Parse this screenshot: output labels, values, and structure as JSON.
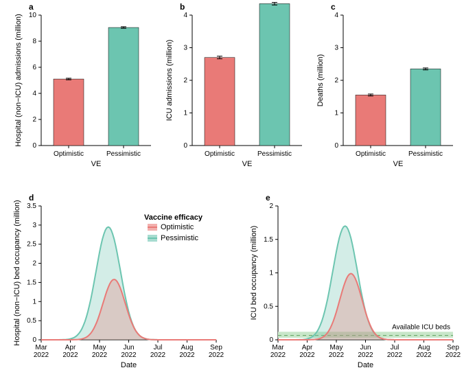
{
  "colors": {
    "optimistic": "#e97a77",
    "pessimistic": "#6cc5b0",
    "axis": "#000000",
    "icuband": "#c8e6c9",
    "icudash": "#5a9e5a"
  },
  "panels": {
    "a": {
      "letter": "a",
      "ylabel": "Hospital (non−ICU) admissions (million)",
      "ymax": 10,
      "ystep": 2,
      "cats": [
        "Optimistic",
        "Pessimistic"
      ],
      "vals": [
        5.1,
        9.05
      ],
      "err": [
        0.06,
        0.06
      ]
    },
    "b": {
      "letter": "b",
      "ylabel": "ICU admissions (million)",
      "ymax": 4,
      "ystep": 1,
      "cats": [
        "Optimistic",
        "Pessimistic"
      ],
      "vals": [
        2.7,
        4.35
      ],
      "err": [
        0.04,
        0.04
      ],
      "ytickshalf": true
    },
    "c": {
      "letter": "c",
      "ylabel": "Deaths (million)",
      "ymax": 4,
      "ystep": 1,
      "cats": [
        "Optimistic",
        "Pessimistic"
      ],
      "vals": [
        1.55,
        2.35
      ],
      "err": [
        0.03,
        0.03
      ]
    },
    "d": {
      "letter": "d",
      "ylabel": "Hospital (non−ICU) bed occupancy (million)",
      "xlabel": "Date",
      "ymax": 3.5,
      "ystep": 0.5,
      "months": [
        "Mar",
        "Apr",
        "May",
        "Jun",
        "Jul",
        "Aug",
        "Sep"
      ],
      "year": "2022",
      "curves": {
        "pessimistic": {
          "peak": 2.95,
          "peakx": 2.3,
          "sd": 0.42
        },
        "optimistic": {
          "peak": 1.58,
          "peakx": 2.5,
          "sd": 0.38
        }
      }
    },
    "e": {
      "letter": "e",
      "ylabel": "ICU bed occupancy (million)",
      "xlabel": "Date",
      "ymax": 2,
      "ystep": 0.5,
      "months": [
        "Mar",
        "Apr",
        "May",
        "Jun",
        "Jul",
        "Aug",
        "Sep"
      ],
      "year": "2022",
      "curves": {
        "pessimistic": {
          "peak": 1.7,
          "peakx": 2.3,
          "sd": 0.42
        },
        "optimistic": {
          "peak": 0.99,
          "peakx": 2.5,
          "sd": 0.38
        }
      },
      "icuband": {
        "low": 0.03,
        "high": 0.12,
        "dash": 0.065
      },
      "annotation": "Available ICU beds"
    }
  },
  "legend": {
    "title": "Vaccine efficacy",
    "items": [
      "Optimistic",
      "Pessimistic"
    ]
  }
}
